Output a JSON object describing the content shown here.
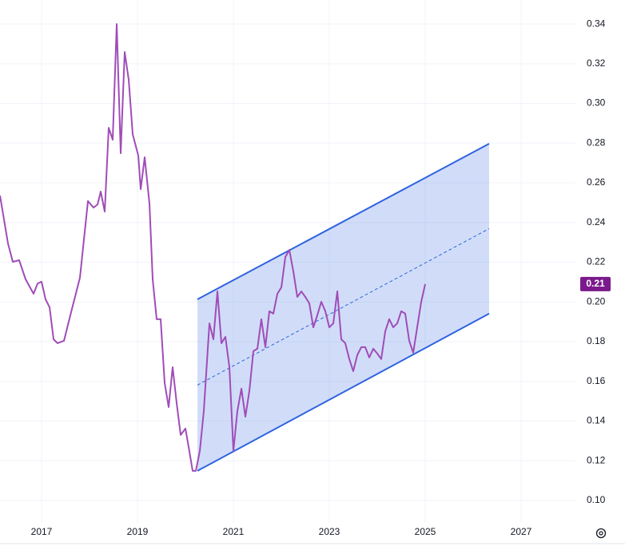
{
  "chart_data": {
    "type": "line",
    "xlim": [
      2016.133,
      2028.133
    ],
    "ylim": [
      0.0887,
      0.3521
    ],
    "xticks": [
      2017,
      2019,
      2021,
      2023,
      2025,
      2027
    ],
    "yticks": [
      {
        "value": 0.1,
        "label": "0.10"
      },
      0.12,
      0.14,
      0.16,
      0.18,
      {
        "value": 0.2,
        "label": "0.20"
      },
      0.22,
      0.24,
      0.26,
      0.28,
      {
        "value": 0.3,
        "label": "0.30"
      },
      0.32,
      0.34
    ],
    "grid": true,
    "series": [
      {
        "color": "#a04cb8",
        "x": [
          2016.133,
          2016.3,
          2016.4,
          2016.533,
          2016.667,
          2016.833,
          2016.917,
          2017.0,
          2017.083,
          2017.167,
          2017.25,
          2017.333,
          2017.467,
          2017.6,
          2017.8,
          2017.967,
          2018.083,
          2018.167,
          2018.233,
          2018.317,
          2018.4,
          2018.483,
          2018.567,
          2018.65,
          2018.733,
          2018.817,
          2018.9,
          2019.017,
          2019.067,
          2019.15,
          2019.25,
          2019.317,
          2019.4,
          2019.483,
          2019.567,
          2019.65,
          2019.733,
          2019.817,
          2019.9,
          2020.0,
          2020.067,
          2020.15,
          2020.217,
          2020.3,
          2020.383,
          2020.5,
          2020.583,
          2020.667,
          2020.75,
          2020.833,
          2020.917,
          2021.0,
          2021.083,
          2021.167,
          2021.25,
          2021.333,
          2021.417,
          2021.5,
          2021.583,
          2021.667,
          2021.75,
          2021.833,
          2021.917,
          2022.0,
          2022.083,
          2022.167,
          2022.25,
          2022.333,
          2022.417,
          2022.5,
          2022.583,
          2022.667,
          2022.75,
          2022.833,
          2022.917,
          2023.0,
          2023.083,
          2023.167,
          2023.25,
          2023.333,
          2023.417,
          2023.5,
          2023.583,
          2023.667,
          2023.75,
          2023.833,
          2023.917,
          2024.0,
          2024.083,
          2024.167,
          2024.25,
          2024.333,
          2024.417,
          2024.5,
          2024.583,
          2024.667,
          2024.75,
          2024.833,
          2024.917,
          2025.0
        ],
        "values": [
          0.2536,
          0.2294,
          0.2202,
          0.221,
          0.2114,
          0.2041,
          0.2093,
          0.2102,
          0.2013,
          0.1973,
          0.1812,
          0.1792,
          0.1804,
          0.1933,
          0.2122,
          0.2508,
          0.2475,
          0.2491,
          0.2556,
          0.2455,
          0.2877,
          0.2817,
          0.34,
          0.2749,
          0.3259,
          0.3119,
          0.2845,
          0.2737,
          0.2568,
          0.2729,
          0.2495,
          0.2114,
          0.1913,
          0.1913,
          0.1591,
          0.147,
          0.1671,
          0.149,
          0.133,
          0.1362,
          0.1269,
          0.1149,
          0.1149,
          0.1249,
          0.145,
          0.1892,
          0.1812,
          0.2053,
          0.1792,
          0.1824,
          0.1671,
          0.1249,
          0.145,
          0.1563,
          0.1422,
          0.1551,
          0.1752,
          0.1764,
          0.1913,
          0.1772,
          0.1953,
          0.1941,
          0.2041,
          0.2073,
          0.2226,
          0.2262,
          0.2154,
          0.2025,
          0.2053,
          0.2025,
          0.1993,
          0.1872,
          0.1933,
          0.2001,
          0.1953,
          0.1872,
          0.1892,
          0.2053,
          0.1812,
          0.1792,
          0.1712,
          0.1651,
          0.1732,
          0.1772,
          0.1772,
          0.172,
          0.1764,
          0.174,
          0.1712,
          0.1852,
          0.1913,
          0.1872,
          0.1892,
          0.1953,
          0.1941,
          0.1804,
          0.1744,
          0.1872,
          0.2001,
          0.209
        ]
      }
    ],
    "channel": {
      "color": "#2f63e0",
      "x": [
        2020.25,
        2026.333
      ],
      "upper": [
        0.2013,
        0.2797
      ],
      "middle": [
        0.1581,
        0.2369
      ],
      "lower": [
        0.1149,
        0.1941
      ]
    },
    "price_label": {
      "value": 0.209,
      "label": "0.21",
      "color": "#7b1a8c"
    }
  }
}
